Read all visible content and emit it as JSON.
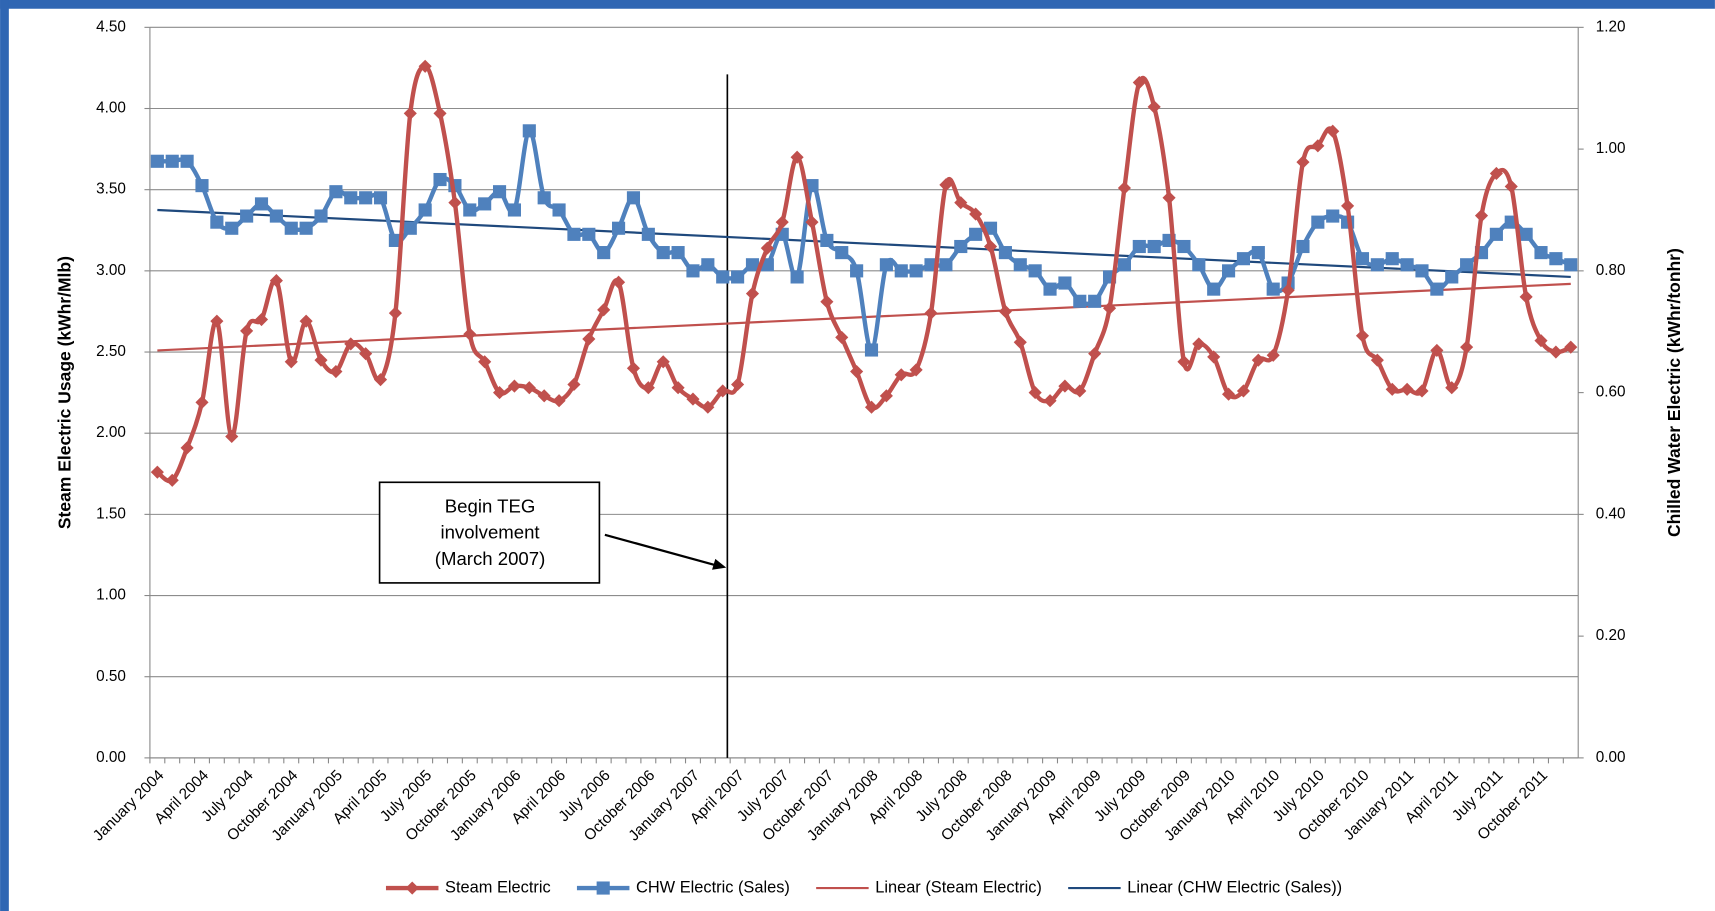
{
  "chart_data": {
    "type": "line",
    "categories": [
      "January 2004",
      null,
      null,
      "April 2004",
      null,
      null,
      "July 2004",
      null,
      null,
      "October 2004",
      null,
      null,
      "January 2005",
      null,
      null,
      "April 2005",
      null,
      null,
      "July 2005",
      null,
      null,
      "October 2005",
      null,
      null,
      "January 2006",
      null,
      null,
      "April 2006",
      null,
      null,
      "July 2006",
      null,
      null,
      "October 2006",
      null,
      null,
      "January 2007",
      null,
      null,
      "April 2007",
      null,
      null,
      "July 2007",
      null,
      null,
      "October 2007",
      null,
      null,
      "January 2008",
      null,
      null,
      "April 2008",
      null,
      null,
      "July 2008",
      null,
      null,
      "October 2008",
      null,
      null,
      "January 2009",
      null,
      null,
      "April 2009",
      null,
      null,
      "July 2009",
      null,
      null,
      "October 2009",
      null,
      null,
      "January 2010",
      null,
      null,
      "April 2010",
      null,
      null,
      "July 2010",
      null,
      null,
      "October 2010",
      null,
      null,
      "January 2011",
      null,
      null,
      "April 2011",
      null,
      null,
      "July 2011",
      null,
      null,
      "October 2011",
      null,
      null
    ],
    "series": [
      {
        "name": "Steam Electric",
        "color": "#c0504d",
        "marker": "diamond",
        "values": [
          1.76,
          1.71,
          1.91,
          2.19,
          2.69,
          1.98,
          2.63,
          2.7,
          2.94,
          2.44,
          2.69,
          2.45,
          2.38,
          2.55,
          2.49,
          2.33,
          2.74,
          3.97,
          4.26,
          3.97,
          3.42,
          2.61,
          2.44,
          2.25,
          2.29,
          2.28,
          2.23,
          2.2,
          2.3,
          2.58,
          2.76,
          2.93,
          2.4,
          2.28,
          2.44,
          2.28,
          2.21,
          2.16,
          2.26,
          2.3,
          2.86,
          3.14,
          3.3,
          3.7,
          3.3,
          2.81,
          2.59,
          2.38,
          2.16,
          2.23,
          2.36,
          2.39,
          2.74,
          3.53,
          3.42,
          3.35,
          3.15,
          2.75,
          2.56,
          2.25,
          2.2,
          2.29,
          2.26,
          2.49,
          2.77,
          3.51,
          4.16,
          4.01,
          3.45,
          2.44,
          2.55,
          2.47,
          2.24,
          2.26,
          2.45,
          2.48,
          2.88,
          3.67,
          3.77,
          3.86,
          3.4,
          2.6,
          2.45,
          2.27,
          2.27,
          2.26,
          2.51,
          2.28,
          2.53,
          3.34,
          3.6,
          3.52,
          2.84,
          2.57,
          2.5,
          2.53
        ]
      },
      {
        "name": "CHW Electric (Sales)",
        "color": "#4f81bd",
        "marker": "square",
        "axis": "y2",
        "values": [
          0.98,
          0.98,
          0.98,
          0.94,
          0.88,
          0.87,
          0.89,
          0.91,
          0.89,
          0.87,
          0.87,
          0.89,
          0.93,
          0.92,
          0.92,
          0.92,
          0.85,
          0.87,
          0.9,
          0.95,
          0.94,
          0.9,
          0.91,
          0.93,
          0.9,
          1.03,
          0.92,
          0.9,
          0.86,
          0.86,
          0.83,
          0.87,
          0.92,
          0.86,
          0.83,
          0.83,
          0.8,
          0.81,
          0.79,
          0.79,
          0.81,
          0.81,
          0.86,
          0.79,
          0.94,
          0.85,
          0.83,
          0.8,
          0.67,
          0.81,
          0.8,
          0.8,
          0.81,
          0.81,
          0.84,
          0.86,
          0.87,
          0.83,
          0.81,
          0.8,
          0.77,
          0.78,
          0.75,
          0.75,
          0.79,
          0.81,
          0.84,
          0.84,
          0.85,
          0.84,
          0.81,
          0.77,
          0.8,
          0.82,
          0.83,
          0.77,
          0.78,
          0.84,
          0.88,
          0.89,
          0.88,
          0.82,
          0.81,
          0.82,
          0.81,
          0.8,
          0.77,
          0.79,
          0.81,
          0.83,
          0.86,
          0.88,
          0.86,
          0.83,
          0.82,
          0.81
        ]
      }
    ],
    "trendlines": [
      {
        "name": "Linear (Steam Electric)",
        "color": "#c0504d",
        "values": [
          2.51,
          2.92
        ]
      },
      {
        "name": "Linear (CHW Electric (Sales))",
        "color": "#1f497d",
        "axis": "y2",
        "values": [
          0.9,
          0.79
        ]
      }
    ],
    "y_label": "Steam Electric Usage (kWhr/Mlb)",
    "y2_label": "Chilled Water Electric (kWhr/tonhr)",
    "ylim": [
      0,
      4.5
    ],
    "yticks": [
      {
        "value": 0,
        "label": "0.00"
      },
      {
        "value": 0.5,
        "label": "0.50"
      },
      {
        "value": 1,
        "label": "1.00"
      },
      {
        "value": 1.5,
        "label": "1.50"
      },
      {
        "value": 2,
        "label": "2.00"
      },
      {
        "value": 2.5,
        "label": "2.50"
      },
      {
        "value": 3,
        "label": "3.00"
      },
      {
        "value": 3.5,
        "label": "3.50"
      },
      {
        "value": 4,
        "label": "4.00"
      },
      {
        "value": 4.5,
        "label": "4.50"
      }
    ],
    "y2lim": [
      0,
      1.2
    ],
    "y2ticks": [
      {
        "value": 0,
        "label": "0.00"
      },
      {
        "value": 0.2,
        "label": "0.20"
      },
      {
        "value": 0.4,
        "label": "0.40"
      },
      {
        "value": 0.6,
        "label": "0.60"
      },
      {
        "value": 0.8,
        "label": "0.80"
      },
      {
        "value": 1,
        "label": "1.00"
      },
      {
        "value": 1.2,
        "label": "1.20"
      }
    ],
    "grid": true,
    "legend": "bottom",
    "annotation": {
      "lines": [
        "Begin TEG",
        "involvement",
        "(March 2007)"
      ]
    }
  }
}
